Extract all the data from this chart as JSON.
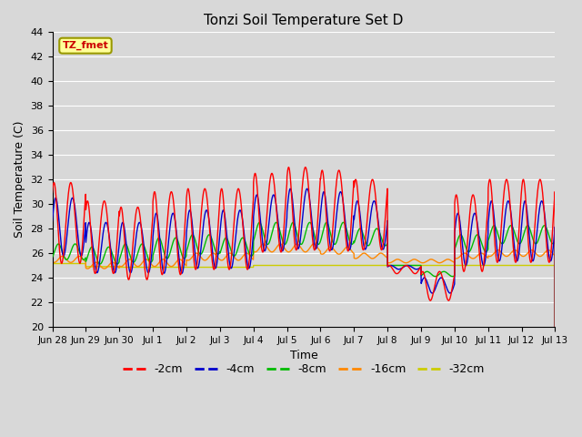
{
  "title": "Tonzi Soil Temperature Set D",
  "xlabel": "Time",
  "ylabel": "Soil Temperature (C)",
  "ylim": [
    20,
    44
  ],
  "yticks": [
    20,
    22,
    24,
    26,
    28,
    30,
    32,
    34,
    36,
    38,
    40,
    42,
    44
  ],
  "annotation_text": "TZ_fmet",
  "annotation_color": "#cc0000",
  "annotation_bg": "#ffff99",
  "annotation_border": "#999900",
  "colors": {
    "-2cm": "#ff0000",
    "-4cm": "#0000cc",
    "-8cm": "#00bb00",
    "-16cm": "#ff8800",
    "-32cm": "#cccc00"
  },
  "legend_labels": [
    "-2cm",
    "-4cm",
    "-8cm",
    "-16cm",
    "-32cm"
  ],
  "bg_color": "#d8d8d8",
  "plot_bg_color": "#d8d8d8",
  "grid_color": "#ffffff",
  "figsize": [
    6.4,
    4.8
  ],
  "dpi": 100
}
